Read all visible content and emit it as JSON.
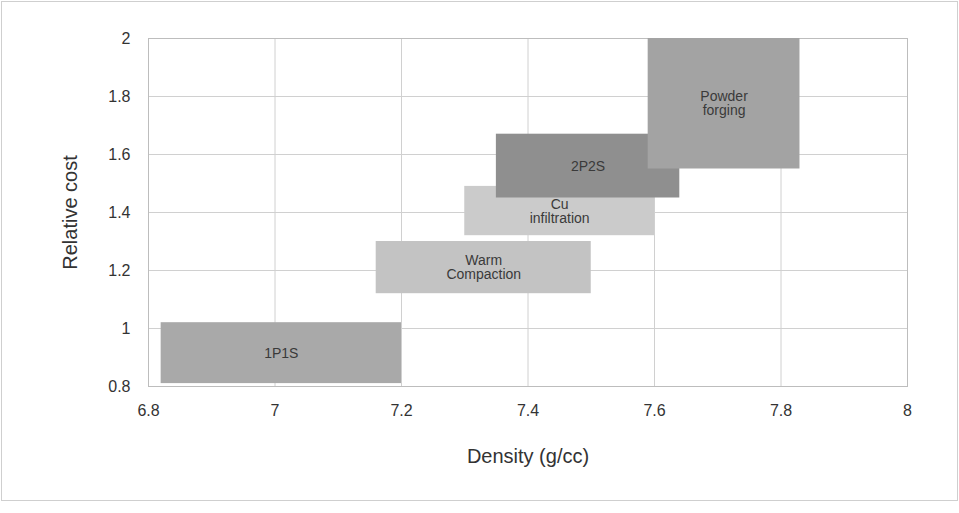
{
  "chart_data": {
    "type": "range",
    "categories": [
      "1P1S",
      "Warm Compaction",
      "Cu infiltration",
      "2P2S",
      "Powder forging"
    ],
    "x_ranges": [
      [
        6.82,
        7.2
      ],
      [
        7.16,
        7.5
      ],
      [
        7.3,
        7.6
      ],
      [
        7.35,
        7.64
      ],
      [
        7.59,
        7.83
      ]
    ],
    "y_ranges": [
      [
        0.81,
        1.02
      ],
      [
        1.12,
        1.3
      ],
      [
        1.32,
        1.49
      ],
      [
        1.45,
        1.67
      ],
      [
        1.55,
        2.0
      ]
    ],
    "colors": [
      "#a9a9a9",
      "#c3c3c3",
      "#cbcbcb",
      "#8f8f8f",
      "#a3a3a3"
    ],
    "x_label": "Density (g/cc)",
    "y_label": "Relative cost",
    "xlim": [
      6.8,
      8
    ],
    "ylim": [
      0.8,
      2
    ],
    "xticks": [
      6.8,
      7,
      7.2,
      7.4,
      7.6,
      7.8,
      8
    ],
    "yticks": [
      0.8,
      1,
      1.2,
      1.4,
      1.6,
      1.8,
      2
    ],
    "grid": true
  }
}
